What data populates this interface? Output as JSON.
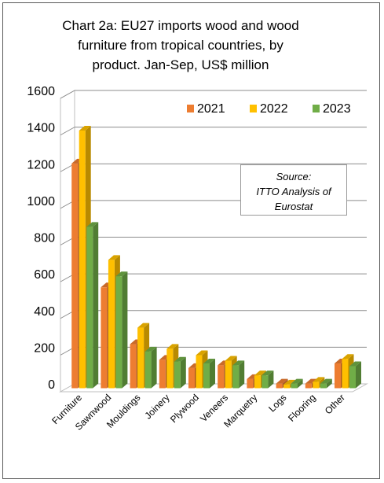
{
  "chart_data": {
    "type": "bar",
    "title_lines": [
      "Chart 2a: EU27 imports wood and wood",
      "furniture from tropical countries, by",
      "product. Jan-Sep, US$ million"
    ],
    "categories": [
      "Furniture",
      "Sawnwood",
      "Mouldings",
      "Joinery",
      "Plywood",
      "Veneers",
      "Marquetry",
      "Logs",
      "Flooring",
      "Other"
    ],
    "series": [
      {
        "name": "2021",
        "color": "#ED7D31",
        "values": [
          1225,
          550,
          240,
          155,
          110,
          125,
          50,
          25,
          25,
          135
        ]
      },
      {
        "name": "2022",
        "color": "#FFC000",
        "values": [
          1405,
          700,
          330,
          215,
          180,
          150,
          70,
          20,
          35,
          160
        ]
      },
      {
        "name": "2023",
        "color": "#70AD47",
        "values": [
          880,
          610,
          200,
          145,
          135,
          125,
          70,
          25,
          25,
          120
        ]
      }
    ],
    "ylim": [
      0,
      1600
    ],
    "yticks": [
      "0",
      "200",
      "400",
      "600",
      "800",
      "1000",
      "1200",
      "1400",
      "1600"
    ],
    "grid": true,
    "legend_position": "top-right",
    "source_lines": [
      "Source:",
      "ITTO Analysis of",
      "Eurostat"
    ]
  }
}
